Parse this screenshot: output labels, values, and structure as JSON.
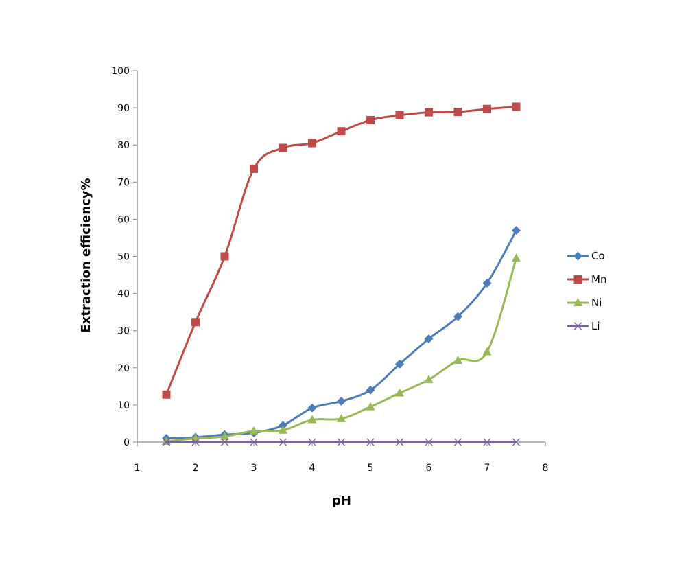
{
  "chart_data": {
    "type": "line",
    "title": "",
    "xlabel": "pH",
    "ylabel": "Extraction efficiency%",
    "xlim": [
      1,
      8
    ],
    "ylim": [
      0,
      100
    ],
    "xticks": [
      "1",
      "2",
      "3",
      "4",
      "5",
      "6",
      "7",
      "8"
    ],
    "yticks": [
      "0",
      "10",
      "20",
      "30",
      "40",
      "50",
      "60",
      "70",
      "80",
      "90",
      "100"
    ],
    "grid": false,
    "legend_position": "right",
    "x": [
      1.5,
      2,
      2.5,
      3,
      3.5,
      4,
      4.5,
      5,
      5.5,
      6,
      6.5,
      7,
      7.5
    ],
    "series": [
      {
        "name": "Co",
        "color": "#4A7EBB",
        "marker": "diamond",
        "values": [
          1,
          1.3,
          2,
          2.5,
          4.5,
          9.2,
          11,
          14,
          21,
          27.8,
          33.8,
          42.8,
          57
        ]
      },
      {
        "name": "Mn",
        "color": "#BE4B48",
        "marker": "square",
        "values": [
          12.8,
          32.3,
          50,
          73.6,
          79.2,
          80.5,
          83.7,
          86.7,
          88,
          88.8,
          88.9,
          89.7,
          90.3
        ]
      },
      {
        "name": "Ni",
        "color": "#98B954",
        "marker": "triangle",
        "values": [
          0.2,
          1,
          1.5,
          3,
          3.2,
          6,
          6.3,
          9.5,
          13.2,
          16.8,
          22,
          24.3,
          49.5
        ]
      },
      {
        "name": "Li",
        "color": "#7D60A0",
        "marker": "x",
        "values": [
          0,
          0,
          0,
          0,
          0,
          0,
          0,
          0,
          0,
          0,
          0,
          0,
          0
        ]
      }
    ]
  }
}
